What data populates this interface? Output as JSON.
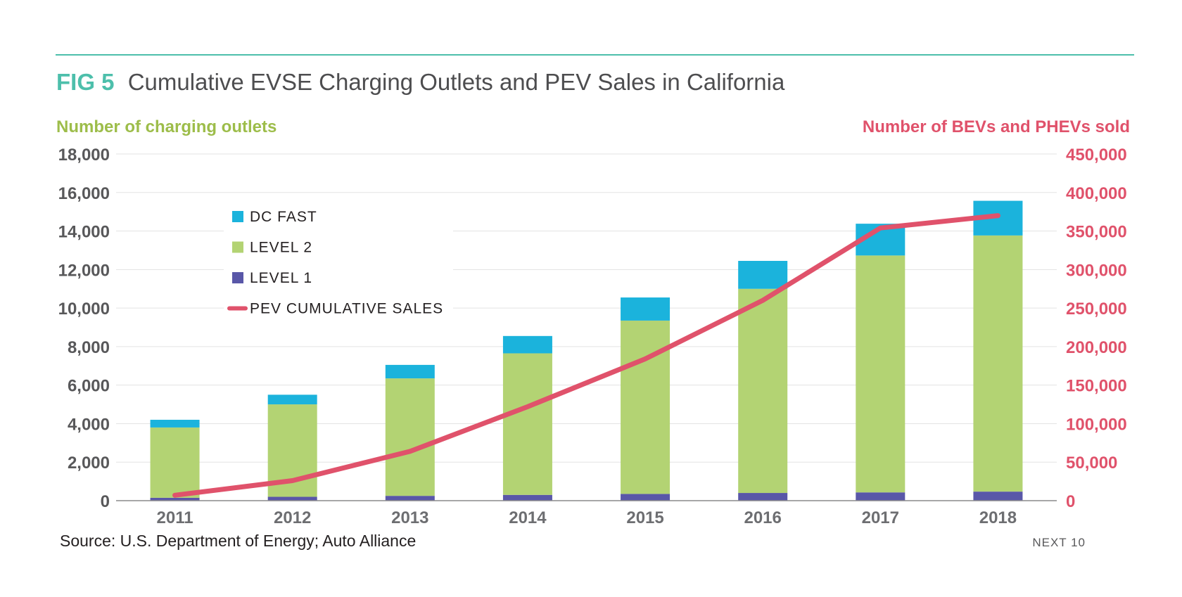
{
  "header": {
    "fig_label": "FIG 5",
    "title": "Cumulative EVSE Charging Outlets and PEV Sales in California"
  },
  "footer": {
    "source": "Source: U.S. Department of Energy; Auto Alliance",
    "brand": "NEXT 10"
  },
  "colors": {
    "rule": "#4dbfab",
    "fig_label": "#4dbfab",
    "title": "#4d4d4f",
    "left_axis": "#9dbd4a",
    "right_axis": "#e0526b",
    "dc_fast": "#1bb3dc",
    "level_2": "#b3d373",
    "level_1": "#5957a8",
    "pev_line": "#e0526b",
    "grid": "#e3e3e3"
  },
  "chart_data": {
    "type": "bar",
    "subtype": "stacked bar with line on secondary axis",
    "categories": [
      "2011",
      "2012",
      "2013",
      "2014",
      "2015",
      "2016",
      "2017",
      "2018"
    ],
    "series": [
      {
        "name": "LEVEL 1",
        "kind": "bar",
        "axis": "left",
        "values": [
          150,
          200,
          250,
          300,
          350,
          400,
          430,
          470
        ]
      },
      {
        "name": "LEVEL 2",
        "kind": "bar",
        "axis": "left",
        "values": [
          3650,
          4800,
          6100,
          7350,
          9000,
          10600,
          12300,
          13300
        ]
      },
      {
        "name": "DC FAST",
        "kind": "bar",
        "axis": "left",
        "values": [
          400,
          500,
          700,
          900,
          1200,
          1450,
          1650,
          1800
        ]
      },
      {
        "name": "PEV CUMULATIVE SALES",
        "kind": "line",
        "axis": "right",
        "values": [
          7000,
          26000,
          64000,
          122000,
          184000,
          260000,
          354000,
          370000
        ]
      }
    ],
    "y_left": {
      "label": "Number of charging outlets",
      "lim": [
        0,
        18000
      ],
      "ticks": [
        "0",
        "2,000",
        "4,000",
        "6,000",
        "8,000",
        "10,000",
        "12,000",
        "14,000",
        "16,000",
        "18,000"
      ],
      "tick_values": [
        0,
        2000,
        4000,
        6000,
        8000,
        10000,
        12000,
        14000,
        16000,
        18000
      ]
    },
    "y_right": {
      "label": "Number of BEVs and PHEVs sold",
      "lim": [
        0,
        450000
      ],
      "ticks": [
        "0",
        "50,000",
        "100,000",
        "150,000",
        "200,000",
        "250,000",
        "300,000",
        "350,000",
        "400,000",
        "450,000"
      ],
      "tick_values": [
        0,
        50000,
        100000,
        150000,
        200000,
        250000,
        300000,
        350000,
        400000,
        450000
      ]
    },
    "legend": {
      "placement": "top-left",
      "entries": [
        "DC FAST",
        "LEVEL 2",
        "LEVEL 1",
        "PEV CUMULATIVE SALES"
      ]
    },
    "grid": true
  }
}
